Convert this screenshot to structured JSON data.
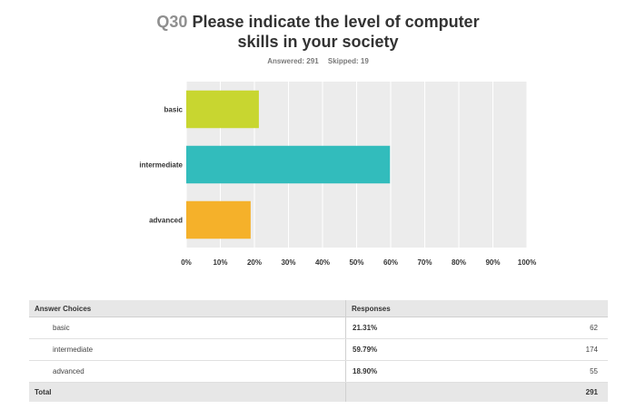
{
  "question": {
    "number": "Q30",
    "title_line1": "Please indicate the level of computer",
    "title_line2": "skills in your society"
  },
  "stats": {
    "answered": "Answered: 291",
    "skipped": "Skipped: 19"
  },
  "chart_data": {
    "type": "bar",
    "orientation": "horizontal",
    "categories": [
      "basic",
      "intermediate",
      "advanced"
    ],
    "values": [
      21.31,
      59.79,
      18.9
    ],
    "colors": [
      "#c8d630",
      "#32bcbc",
      "#f5b12a"
    ],
    "xlim": [
      0,
      100
    ],
    "xticks": [
      "0%",
      "10%",
      "20%",
      "30%",
      "40%",
      "50%",
      "60%",
      "70%",
      "80%",
      "90%",
      "100%"
    ],
    "grid": true,
    "background": "#ececec"
  },
  "table": {
    "headers": [
      "Answer Choices",
      "Responses"
    ],
    "rows": [
      {
        "choice": "basic",
        "percent": "21.31%",
        "count": "62"
      },
      {
        "choice": "intermediate",
        "percent": "59.79%",
        "count": "174"
      },
      {
        "choice": "advanced",
        "percent": "18.90%",
        "count": "55"
      }
    ],
    "total_label": "Total",
    "total_value": "291"
  }
}
